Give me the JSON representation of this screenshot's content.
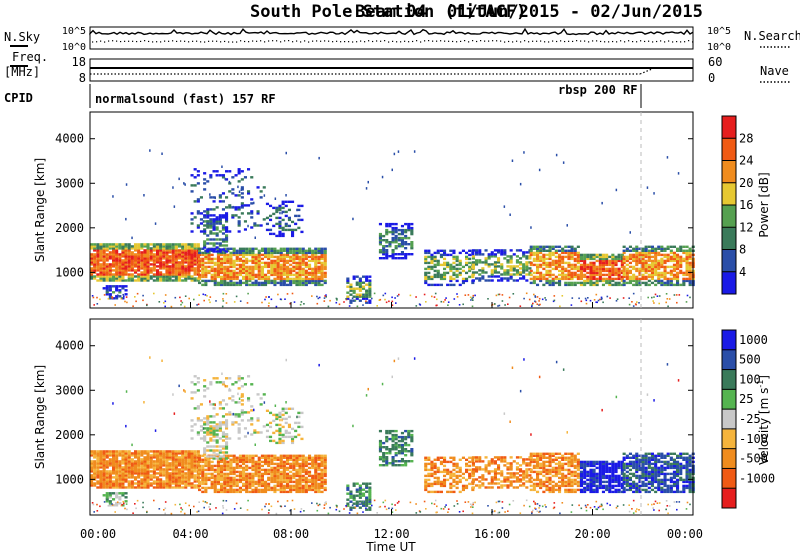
{
  "header": {
    "station": "South Pole Station (fitACF)",
    "beam": "Beam 04",
    "date_range": "01/Jun/2015 - 02/Jun/2015"
  },
  "top_panels": {
    "nsky_label": "N.Sky",
    "nsky_ticks": [
      "10^5",
      "10^0"
    ],
    "nsearch_label": "N.Search",
    "nsearch_ticks": [
      "10^5",
      "10^0"
    ],
    "freq_label": "Freq.",
    "freq_unit": "[MHz]",
    "freq_ticks": [
      "18",
      "8"
    ],
    "nave_label": "Nave",
    "nave_ticks": [
      "60",
      "0"
    ],
    "cpid_label": "CPID",
    "cpid_segments": [
      "normalsound (fast) 157 RF",
      "rbsp 200 RF"
    ]
  },
  "colors": {
    "power_scale": [
      "#1a1ae6",
      "#2a4ea8",
      "#3a7a5a",
      "#55a050",
      "#e6c832",
      "#f08c1e",
      "#f05a14",
      "#e61e1e"
    ],
    "velocity_scale": [
      "#e61e1e",
      "#f05a14",
      "#f08c1e",
      "#f5b43c",
      "#c8c8c8",
      "#55b450",
      "#3a7a5a",
      "#2a4ea8",
      "#1a1ae6"
    ]
  },
  "chart_data": [
    {
      "type": "heatmap",
      "name": "power",
      "ylabel": "Slant Range [km]",
      "yticks": [
        "1000",
        "2000",
        "3000",
        "4000"
      ],
      "ylim": [
        200,
        4600
      ],
      "xlim": [
        "00:00",
        "24:00"
      ],
      "colorbar_label": "Power [dB]",
      "colorbar_ticks": [
        "4",
        "8",
        "12",
        "16",
        "20",
        "24",
        "28"
      ],
      "colorbar_range": [
        0,
        32
      ]
    },
    {
      "type": "heatmap",
      "name": "velocity",
      "ylabel": "Slant Range [km]",
      "yticks": [
        "1000",
        "2000",
        "3000",
        "4000"
      ],
      "ylim": [
        200,
        4600
      ],
      "xlim": [
        "00:00",
        "24:00"
      ],
      "colorbar_label": "Velocity [m s",
      "colorbar_label_sup": "-1",
      "colorbar_label_close": "]",
      "colorbar_ticks": [
        "1000",
        "500",
        "100",
        "25",
        "-25",
        "-100",
        "-500",
        "-1000"
      ]
    }
  ],
  "xaxis": {
    "label": "Time UT",
    "ticks": [
      "00:00",
      "04:00",
      "08:00",
      "12:00",
      "16:00",
      "20:00",
      "00:00"
    ]
  }
}
